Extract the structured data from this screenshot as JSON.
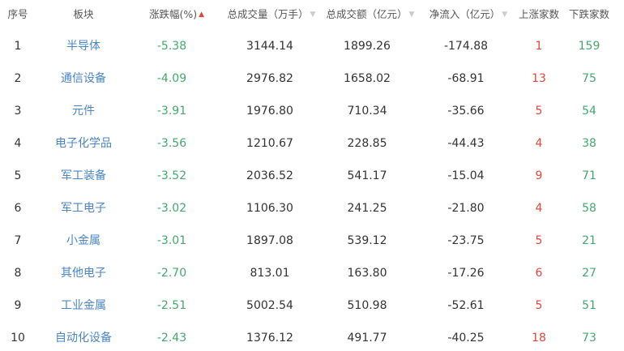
{
  "headers": {
    "index": "序号",
    "sector": "板块",
    "change": "涨跌幅(%)",
    "volume": "总成交量（万手）",
    "amount": "总成交额（亿元）",
    "netflow": "净流入（亿元）",
    "up": "上涨家数",
    "down": "下跌家数"
  },
  "sort": {
    "active": "change",
    "direction": "ascending"
  },
  "colors": {
    "sector": "#4a86c5",
    "negative": "#44a86e",
    "up_count": "#e0463a",
    "down_count": "#44a86e"
  },
  "rows": [
    {
      "index": "1",
      "sector": "半导体",
      "change": "-5.38",
      "volume": "3144.14",
      "amount": "1899.26",
      "netflow": "-174.88",
      "up": "1",
      "down": "159"
    },
    {
      "index": "2",
      "sector": "通信设备",
      "change": "-4.09",
      "volume": "2976.82",
      "amount": "1658.02",
      "netflow": "-68.91",
      "up": "13",
      "down": "75"
    },
    {
      "index": "3",
      "sector": "元件",
      "change": "-3.91",
      "volume": "1976.80",
      "amount": "710.34",
      "netflow": "-35.66",
      "up": "5",
      "down": "54"
    },
    {
      "index": "4",
      "sector": "电子化学品",
      "change": "-3.56",
      "volume": "1210.67",
      "amount": "228.85",
      "netflow": "-44.43",
      "up": "4",
      "down": "38"
    },
    {
      "index": "5",
      "sector": "军工装备",
      "change": "-3.52",
      "volume": "2036.52",
      "amount": "541.17",
      "netflow": "-15.04",
      "up": "9",
      "down": "71"
    },
    {
      "index": "6",
      "sector": "军工电子",
      "change": "-3.02",
      "volume": "1106.30",
      "amount": "241.25",
      "netflow": "-21.80",
      "up": "4",
      "down": "58"
    },
    {
      "index": "7",
      "sector": "小金属",
      "change": "-3.01",
      "volume": "1897.08",
      "amount": "539.12",
      "netflow": "-23.75",
      "up": "5",
      "down": "21"
    },
    {
      "index": "8",
      "sector": "其他电子",
      "change": "-2.70",
      "volume": "813.01",
      "amount": "163.80",
      "netflow": "-17.26",
      "up": "6",
      "down": "27"
    },
    {
      "index": "9",
      "sector": "工业金属",
      "change": "-2.51",
      "volume": "5002.54",
      "amount": "510.98",
      "netflow": "-52.61",
      "up": "5",
      "down": "51"
    },
    {
      "index": "10",
      "sector": "自动化设备",
      "change": "-2.43",
      "volume": "1376.12",
      "amount": "491.77",
      "netflow": "-40.25",
      "up": "18",
      "down": "73"
    }
  ]
}
